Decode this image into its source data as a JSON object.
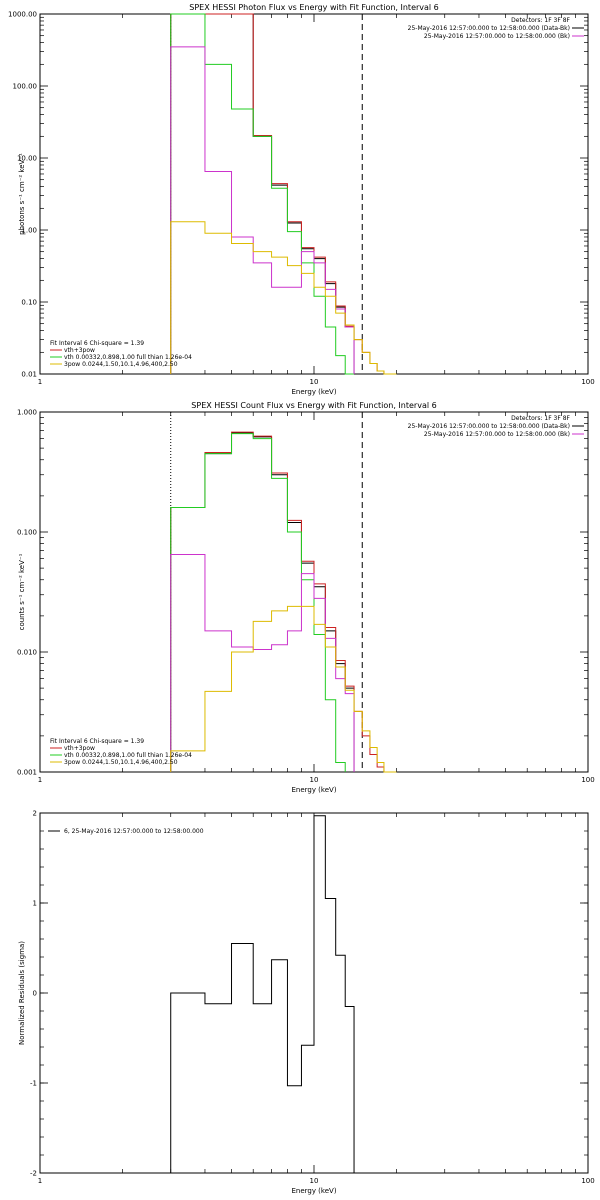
{
  "chart_data": [
    {
      "type": "line",
      "title": "SPEX HESSI Photon Flux vs Energy with Fit Function, Interval 6",
      "xlabel": "Energy (keV)",
      "ylabel": "photons s⁻¹ cm⁻² keV⁻¹",
      "xscale": "log",
      "yscale": "log",
      "xlim": [
        1,
        100
      ],
      "ylim": [
        0.01,
        1000
      ],
      "xticks": [
        {
          "v": 1,
          "label": "1"
        },
        {
          "v": 10,
          "label": "10"
        },
        {
          "v": 100,
          "label": "100"
        }
      ],
      "yticks": [
        {
          "v": 0.01,
          "label": "0.01"
        },
        {
          "v": 0.1,
          "label": "0.10"
        },
        {
          "v": 1,
          "label": "1.00"
        },
        {
          "v": 10,
          "label": "10.00"
        },
        {
          "v": 100,
          "label": "100.00"
        },
        {
          "v": 1000,
          "label": "1000.00"
        }
      ],
      "legend_top": [
        "Detectors: 1F 3F 8F",
        "25-May-2016 12:57:00.000 to 12:58:00.000 (Data-Bk)",
        "25-May-2016 12:57:00.000 to 12:58:00.000 (Bk)"
      ],
      "legend_top_colors": [
        "",
        "#000000",
        "#cc33cc"
      ],
      "legend_bottom": [
        "Fit Interval 6   Chi-square = 1.39",
        "vth+3pow",
        "vth 0.00332,0.898,1.00  full thian 1.26e-04",
        "3pow 0.0244,1.50,10.1,4.96,400,2.50"
      ],
      "legend_bottom_colors": [
        "",
        "#cc2222",
        "#22cc22",
        "#ddbb00"
      ],
      "vlines": [
        {
          "x": 3.0,
          "dash": "dot"
        },
        {
          "x": 15,
          "dash": "dash"
        }
      ],
      "edges": [
        3,
        4,
        5,
        6,
        7,
        8,
        9,
        10,
        11,
        12,
        13,
        14,
        15,
        16,
        17,
        18,
        19,
        20
      ],
      "series": [
        {
          "color": "#000000",
          "values": [
            1000,
            1000,
            1000,
            20,
            4.2,
            1.25,
            0.55,
            0.4,
            0.18,
            0.085,
            0.045,
            null,
            null,
            null,
            null,
            null,
            null
          ]
        },
        {
          "color": "#cc2222",
          "values": [
            1000,
            1000,
            1000,
            20.5,
            4.4,
            1.3,
            0.57,
            0.42,
            0.19,
            0.088,
            0.046,
            0.03,
            0.02,
            0.014,
            0.011,
            null,
            null
          ]
        },
        {
          "color": "#22cc22",
          "values": [
            1000,
            200,
            48,
            20,
            3.8,
            0.95,
            0.35,
            0.12,
            0.045,
            0.018,
            0.008,
            null,
            null,
            null,
            null,
            null,
            null
          ]
        },
        {
          "color": "#cc33cc",
          "values": [
            350,
            6.5,
            0.8,
            0.35,
            0.16,
            0.16,
            0.5,
            0.35,
            0.15,
            0.08,
            0.045,
            null,
            null,
            null,
            null,
            null,
            null
          ]
        },
        {
          "color": "#ddbb00",
          "values": [
            1.3,
            0.9,
            0.65,
            0.5,
            0.42,
            0.32,
            0.25,
            0.16,
            0.12,
            0.07,
            0.048,
            0.03,
            0.02,
            0.014,
            0.011,
            0.01,
            0.01
          ]
        }
      ]
    },
    {
      "type": "line",
      "title": "SPEX HESSI Count Flux vs Energy with Fit Function, Interval 6",
      "xlabel": "Energy (keV)",
      "ylabel": "counts s⁻¹ cm⁻² keV⁻¹",
      "xscale": "log",
      "yscale": "log",
      "xlim": [
        1,
        100
      ],
      "ylim": [
        0.001,
        1.0
      ],
      "xticks": [
        {
          "v": 1,
          "label": "1"
        },
        {
          "v": 10,
          "label": "10"
        },
        {
          "v": 100,
          "label": "100"
        }
      ],
      "yticks": [
        {
          "v": 0.001,
          "label": "0.001"
        },
        {
          "v": 0.01,
          "label": "0.010"
        },
        {
          "v": 0.1,
          "label": "0.100"
        },
        {
          "v": 1,
          "label": "1.000"
        }
      ],
      "legend_top": [
        "Detectors: 1F 3F 8F",
        "25-May-2016 12:57:00.000 to 12:58:00.000 (Data-Bk)",
        "25-May-2016 12:57:00.000 to 12:58:00.000 (Bk)"
      ],
      "legend_top_colors": [
        "",
        "#000000",
        "#cc33cc"
      ],
      "legend_bottom": [
        "Fit Interval 6   Chi-square = 1.39",
        "vth+3pow",
        "vth 0.00332,0.898,1.00  full thian 1.26e-04",
        "3pow 0.0244,1.50,10.1,4.96,400,2.50"
      ],
      "legend_bottom_colors": [
        "",
        "#cc2222",
        "#22cc22",
        "#ddbb00"
      ],
      "vlines": [
        {
          "x": 3.0,
          "dash": "dot"
        },
        {
          "x": 15,
          "dash": "dash"
        }
      ],
      "edges": [
        3,
        4,
        5,
        6,
        7,
        8,
        9,
        10,
        11,
        12,
        13,
        14,
        15,
        16,
        17,
        18,
        19,
        20
      ],
      "series": [
        {
          "color": "#000000",
          "values": [
            0.16,
            0.45,
            0.67,
            0.62,
            0.3,
            0.12,
            0.055,
            0.035,
            0.015,
            0.008,
            0.005,
            null,
            null,
            null,
            null,
            null,
            null
          ]
        },
        {
          "color": "#cc2222",
          "values": [
            0.16,
            0.46,
            0.68,
            0.63,
            0.31,
            0.125,
            0.057,
            0.037,
            0.016,
            0.0085,
            0.0052,
            0.0032,
            0.002,
            0.0014,
            0.0011,
            null,
            null
          ]
        },
        {
          "color": "#22cc22",
          "values": [
            0.16,
            0.45,
            0.66,
            0.6,
            0.28,
            0.1,
            0.04,
            0.014,
            0.004,
            0.0012,
            null,
            null,
            null,
            null,
            null,
            null,
            null
          ]
        },
        {
          "color": "#cc33cc",
          "values": [
            0.065,
            0.015,
            0.011,
            0.0105,
            0.0115,
            0.015,
            0.045,
            0.028,
            0.013,
            0.006,
            0.0045,
            null,
            null,
            null,
            null,
            null,
            null
          ]
        },
        {
          "color": "#ddbb00",
          "values": [
            0.0015,
            0.0047,
            0.01,
            0.018,
            0.022,
            0.024,
            0.024,
            0.017,
            0.011,
            0.0075,
            0.0048,
            0.0032,
            0.0022,
            0.0016,
            0.0012,
            0.001,
            0.001
          ]
        }
      ]
    },
    {
      "type": "line",
      "title": "",
      "xlabel": "Energy (keV)",
      "ylabel": "Normalized Residuals (sigma)",
      "xscale": "log",
      "yscale": "linear",
      "xlim": [
        1,
        100
      ],
      "ylim": [
        -2,
        2
      ],
      "xticks": [
        {
          "v": 1,
          "label": "1"
        },
        {
          "v": 10,
          "label": "10"
        },
        {
          "v": 100,
          "label": "100"
        }
      ],
      "yticks": [
        {
          "v": -2,
          "label": "-2"
        },
        {
          "v": -1,
          "label": "-1"
        },
        {
          "v": 0,
          "label": "0"
        },
        {
          "v": 1,
          "label": "1"
        },
        {
          "v": 2,
          "label": "2"
        }
      ],
      "legend_top": [
        "6, 25-May-2016 12:57:00.000 to 12:58:00.000"
      ],
      "legend_top_colors": [
        "#000000"
      ],
      "legend_bottom": [],
      "legend_bottom_colors": [],
      "vlines": [],
      "edges": [
        3,
        4,
        5,
        6,
        7,
        8,
        9,
        10,
        11,
        12,
        13,
        14,
        15
      ],
      "series": [
        {
          "color": "#000000",
          "values": [
            0,
            -0.12,
            0.55,
            -0.12,
            0.37,
            -1.03,
            -0.58,
            1.97,
            1.05,
            0.42,
            -0.15,
            null
          ]
        }
      ]
    }
  ]
}
